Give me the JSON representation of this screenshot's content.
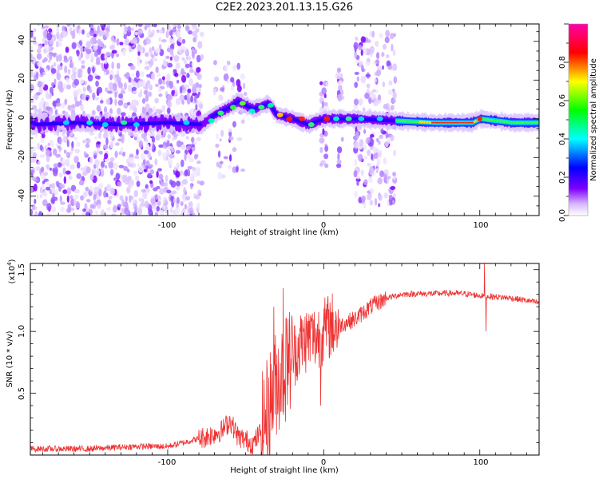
{
  "figure_title": "C2E2.2023.201.13.15.G26",
  "colors": {
    "series_line": "#ee3333",
    "axis": "#000000",
    "background": "#ffffff"
  },
  "chart_data": [
    {
      "type": "heatmap",
      "title": "",
      "xlabel": "Height of straight line (km)",
      "ylabel": "Frequency (Hz)",
      "xlim": [
        -188,
        138
      ],
      "ylim": [
        -50,
        49
      ],
      "x_ticks": [
        "-100",
        "0",
        "100"
      ],
      "y_ticks": [
        "-40",
        "-20",
        "0",
        "20",
        "40"
      ],
      "colorbar": {
        "label": "Normalized spectral amplitude",
        "range": [
          0,
          1
        ],
        "ticks": [
          "0.0",
          "0.2",
          "0.4",
          "0.6",
          "0.8"
        ],
        "colormap": "rainbow (white-violet-blue-cyan-green-yellow-red-magenta)"
      },
      "ridge_points": [
        {
          "x": -185,
          "y": -3
        },
        {
          "x": -160,
          "y": -2
        },
        {
          "x": -130,
          "y": -3
        },
        {
          "x": -100,
          "y": -2
        },
        {
          "x": -78,
          "y": -3
        },
        {
          "x": -70,
          "y": 2
        },
        {
          "x": -60,
          "y": 6
        },
        {
          "x": -55,
          "y": 9
        },
        {
          "x": -45,
          "y": 5
        },
        {
          "x": -35,
          "y": 8
        },
        {
          "x": -30,
          "y": 2
        },
        {
          "x": -20,
          "y": 0
        },
        {
          "x": -10,
          "y": -3
        },
        {
          "x": 0,
          "y": 0
        },
        {
          "x": 20,
          "y": 0
        },
        {
          "x": 45,
          "y": -1
        },
        {
          "x": 70,
          "y": -2
        },
        {
          "x": 95,
          "y": -2
        },
        {
          "x": 100,
          "y": 0
        },
        {
          "x": 120,
          "y": -2
        },
        {
          "x": 138,
          "y": -2
        }
      ]
    },
    {
      "type": "line",
      "title": "",
      "xlabel": "Height of straight line (km)",
      "ylabel": "SNR (10 * v/v)",
      "y_multiplier": "(x10",
      "y_multiplier_exp": "4",
      "y_multiplier_close": ")",
      "xlim": [
        -188,
        138
      ],
      "ylim": [
        0,
        15500
      ],
      "x_ticks": [
        "-100",
        "0",
        "100"
      ],
      "y_ticks": [
        "0.5",
        "1.0",
        "1.5"
      ],
      "series": [
        {
          "values_xy": [
            [
              -188,
              500
            ],
            [
              -150,
              500
            ],
            [
              -120,
              700
            ],
            [
              -100,
              700
            ],
            [
              -90,
              1000
            ],
            [
              -75,
              1500
            ],
            [
              -65,
              2000
            ],
            [
              -60,
              2800
            ],
            [
              -55,
              1500
            ],
            [
              -45,
              900
            ],
            [
              -40,
              2000
            ],
            [
              -35,
              4000
            ],
            [
              -30,
              6000
            ],
            [
              -25,
              7000
            ],
            [
              -20,
              8000
            ],
            [
              -15,
              9000
            ],
            [
              -10,
              9500
            ],
            [
              -5,
              9500
            ],
            [
              0,
              10000
            ],
            [
              5,
              10500
            ],
            [
              10,
              10500
            ],
            [
              20,
              11000
            ],
            [
              30,
              12000
            ],
            [
              40,
              12700
            ],
            [
              50,
              13000
            ],
            [
              60,
              13050
            ],
            [
              70,
              13050
            ],
            [
              80,
              13100
            ],
            [
              90,
              13050
            ],
            [
              100,
              12900
            ],
            [
              110,
              12800
            ],
            [
              120,
              12700
            ],
            [
              130,
              12500
            ],
            [
              138,
              12300
            ]
          ],
          "spikes": [
            [
              -32,
              12000
            ],
            [
              -26,
              13500
            ],
            [
              -23,
              11000
            ],
            [
              -8,
              10800
            ],
            [
              -2,
              4000
            ],
            [
              3,
              9800
            ],
            [
              103,
              15500
            ],
            [
              104,
              10000
            ]
          ]
        }
      ]
    }
  ]
}
